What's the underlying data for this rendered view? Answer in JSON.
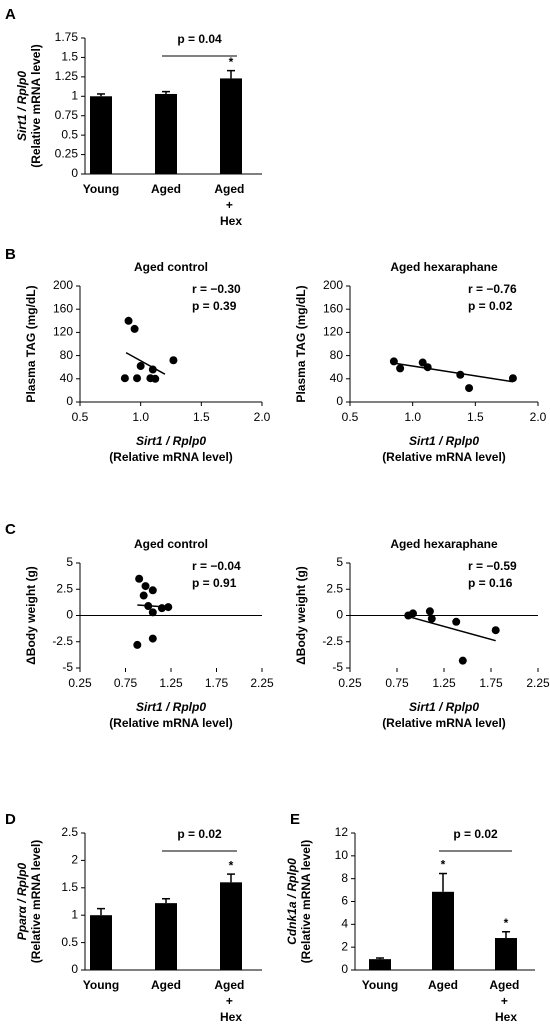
{
  "chart_data": [
    {
      "type": "bar",
      "panel": "A",
      "categories": [
        "Young",
        "Aged",
        "Aged + Hex"
      ],
      "values": [
        1.0,
        1.03,
        1.23
      ],
      "errors": [
        0.03,
        0.03,
        0.1
      ],
      "stars": [
        null,
        null,
        "*"
      ],
      "color": "#000000",
      "ylabel": [
        "Sirt1 / Rplp0",
        "(Relative mRNA level)"
      ],
      "ylim": [
        0,
        1.75
      ],
      "yticks": [
        0,
        0.25,
        0.5,
        0.75,
        1,
        1.25,
        1.5,
        1.75
      ],
      "bracket": {
        "span": [
          1,
          2
        ],
        "label": "p = 0.04"
      }
    },
    {
      "type": "scatter",
      "panel": "B",
      "title": "Aged control",
      "stats": [
        "r = −0.30",
        "p = 0.39"
      ],
      "x": [
        0.9,
        0.95,
        0.87,
        0.97,
        1.0,
        1.1,
        1.08,
        1.12,
        1.27
      ],
      "y": [
        140,
        126,
        41,
        41,
        62,
        56,
        41,
        40,
        72
      ],
      "color": "#000000",
      "trendline": {
        "x": [
          0.88,
          1.2
        ],
        "y": [
          85,
          48
        ]
      },
      "xlabel": [
        "Sirt1 / Rplp0",
        "(Relative mRNA level)"
      ],
      "ylabel": [
        "Plasma TAG (mg/dL)"
      ],
      "xlim": [
        0.5,
        2.0
      ],
      "xticks": [
        0.5,
        {
          "value": 1,
          "label": "1.0"
        },
        1.5,
        {
          "value": 2,
          "label": "2.0"
        }
      ],
      "ylim": [
        0,
        200
      ],
      "yticks": [
        0,
        40,
        80,
        120,
        160,
        200
      ]
    },
    {
      "type": "scatter",
      "title": "Aged hexaraphane",
      "stats": [
        "r = −0.76",
        "p = 0.02"
      ],
      "x": [
        0.85,
        0.9,
        1.08,
        1.12,
        1.38,
        1.45,
        1.8
      ],
      "y": [
        70,
        58,
        68,
        60,
        47,
        24,
        41
      ],
      "color": "#000000",
      "trendline": {
        "x": [
          0.85,
          1.8
        ],
        "y": [
          67,
          35
        ]
      },
      "xlabel": [
        "Sirt1 / Rplp0",
        "(Relative mRNA level)"
      ],
      "ylabel": [
        "Plasma TAG (mg/dL)"
      ],
      "xlim": [
        0.5,
        2.0
      ],
      "xticks": [
        0.5,
        {
          "value": 1,
          "label": "1.0"
        },
        1.5,
        {
          "value": 2,
          "label": "2.0"
        }
      ],
      "ylim": [
        0,
        200
      ],
      "yticks": [
        0,
        40,
        80,
        120,
        160,
        200
      ]
    },
    {
      "type": "scatter",
      "panel": "C",
      "title": "Aged control",
      "stats": [
        "r = −0.04",
        "p = 0.91"
      ],
      "x": [
        0.9,
        0.97,
        0.95,
        1.05,
        1.0,
        1.05,
        1.15,
        1.22,
        1.05,
        0.88
      ],
      "y": [
        3.5,
        2.8,
        1.9,
        2.4,
        0.9,
        0.3,
        0.7,
        0.8,
        -2.2,
        -2.8
      ],
      "color": "#000000",
      "trendline": {
        "x": [
          0.88,
          1.22
        ],
        "y": [
          1.0,
          0.8
        ]
      },
      "xlabel": [
        "Sirt1 / Rplp0",
        "(Relative mRNA level)"
      ],
      "ylabel": [
        "ΔBody weight (g)"
      ],
      "xlim": [
        0.25,
        2.25
      ],
      "xticks": [
        0.25,
        0.75,
        1.25,
        1.75,
        2.25
      ],
      "ylim": [
        -5,
        5
      ],
      "yticks": [
        -5,
        -2.5,
        0,
        2.5,
        5
      ]
    },
    {
      "type": "scatter",
      "title": "Aged hexaraphane",
      "stats": [
        "r = −0.59",
        "p = 0.16"
      ],
      "x": [
        0.87,
        0.92,
        1.1,
        1.12,
        1.38,
        1.45,
        1.8
      ],
      "y": [
        0,
        0.2,
        0.4,
        -0.3,
        -0.6,
        -4.3,
        -1.4
      ],
      "color": "#000000",
      "trendline": {
        "x": [
          0.87,
          1.8
        ],
        "y": [
          -0.1,
          -2.4
        ]
      },
      "xlabel": [
        "Sirt1 / Rplp0",
        "(Relative mRNA level)"
      ],
      "ylabel": [
        "ΔBody weight (g)"
      ],
      "xlim": [
        0.25,
        2.25
      ],
      "xticks": [
        0.25,
        0.75,
        1.25,
        1.75,
        2.25
      ],
      "ylim": [
        -5,
        5
      ],
      "yticks": [
        -5,
        -2.5,
        0,
        2.5,
        5
      ]
    },
    {
      "type": "bar",
      "panel": "D",
      "categories": [
        "Young",
        "Aged",
        "Aged + Hex"
      ],
      "values": [
        1.0,
        1.22,
        1.6
      ],
      "errors": [
        0.12,
        0.08,
        0.15
      ],
      "stars": [
        null,
        null,
        "*"
      ],
      "color": "#000000",
      "ylabel": [
        "Pparα / Rplp0",
        "(Relative mRNA level)"
      ],
      "ylim": [
        0,
        2.5
      ],
      "yticks": [
        0,
        0.5,
        1,
        1.5,
        2,
        2.5
      ],
      "bracket": {
        "span": [
          1,
          2
        ],
        "label": "p = 0.02"
      }
    },
    {
      "type": "bar",
      "panel": "E",
      "categories": [
        "Young",
        "Aged",
        "Aged + Hex"
      ],
      "values": [
        0.95,
        6.85,
        2.8
      ],
      "errors": [
        0.1,
        1.6,
        0.55
      ],
      "stars": [
        null,
        "*",
        "*"
      ],
      "color": "#000000",
      "ylabel": [
        "Cdnk1a / Rplp0",
        "(Relative mRNA level)"
      ],
      "ylim": [
        0,
        12
      ],
      "yticks": [
        0,
        2,
        4,
        6,
        8,
        10,
        12
      ],
      "bracket": {
        "span": [
          1,
          2
        ],
        "label": "p = 0.02"
      }
    }
  ]
}
